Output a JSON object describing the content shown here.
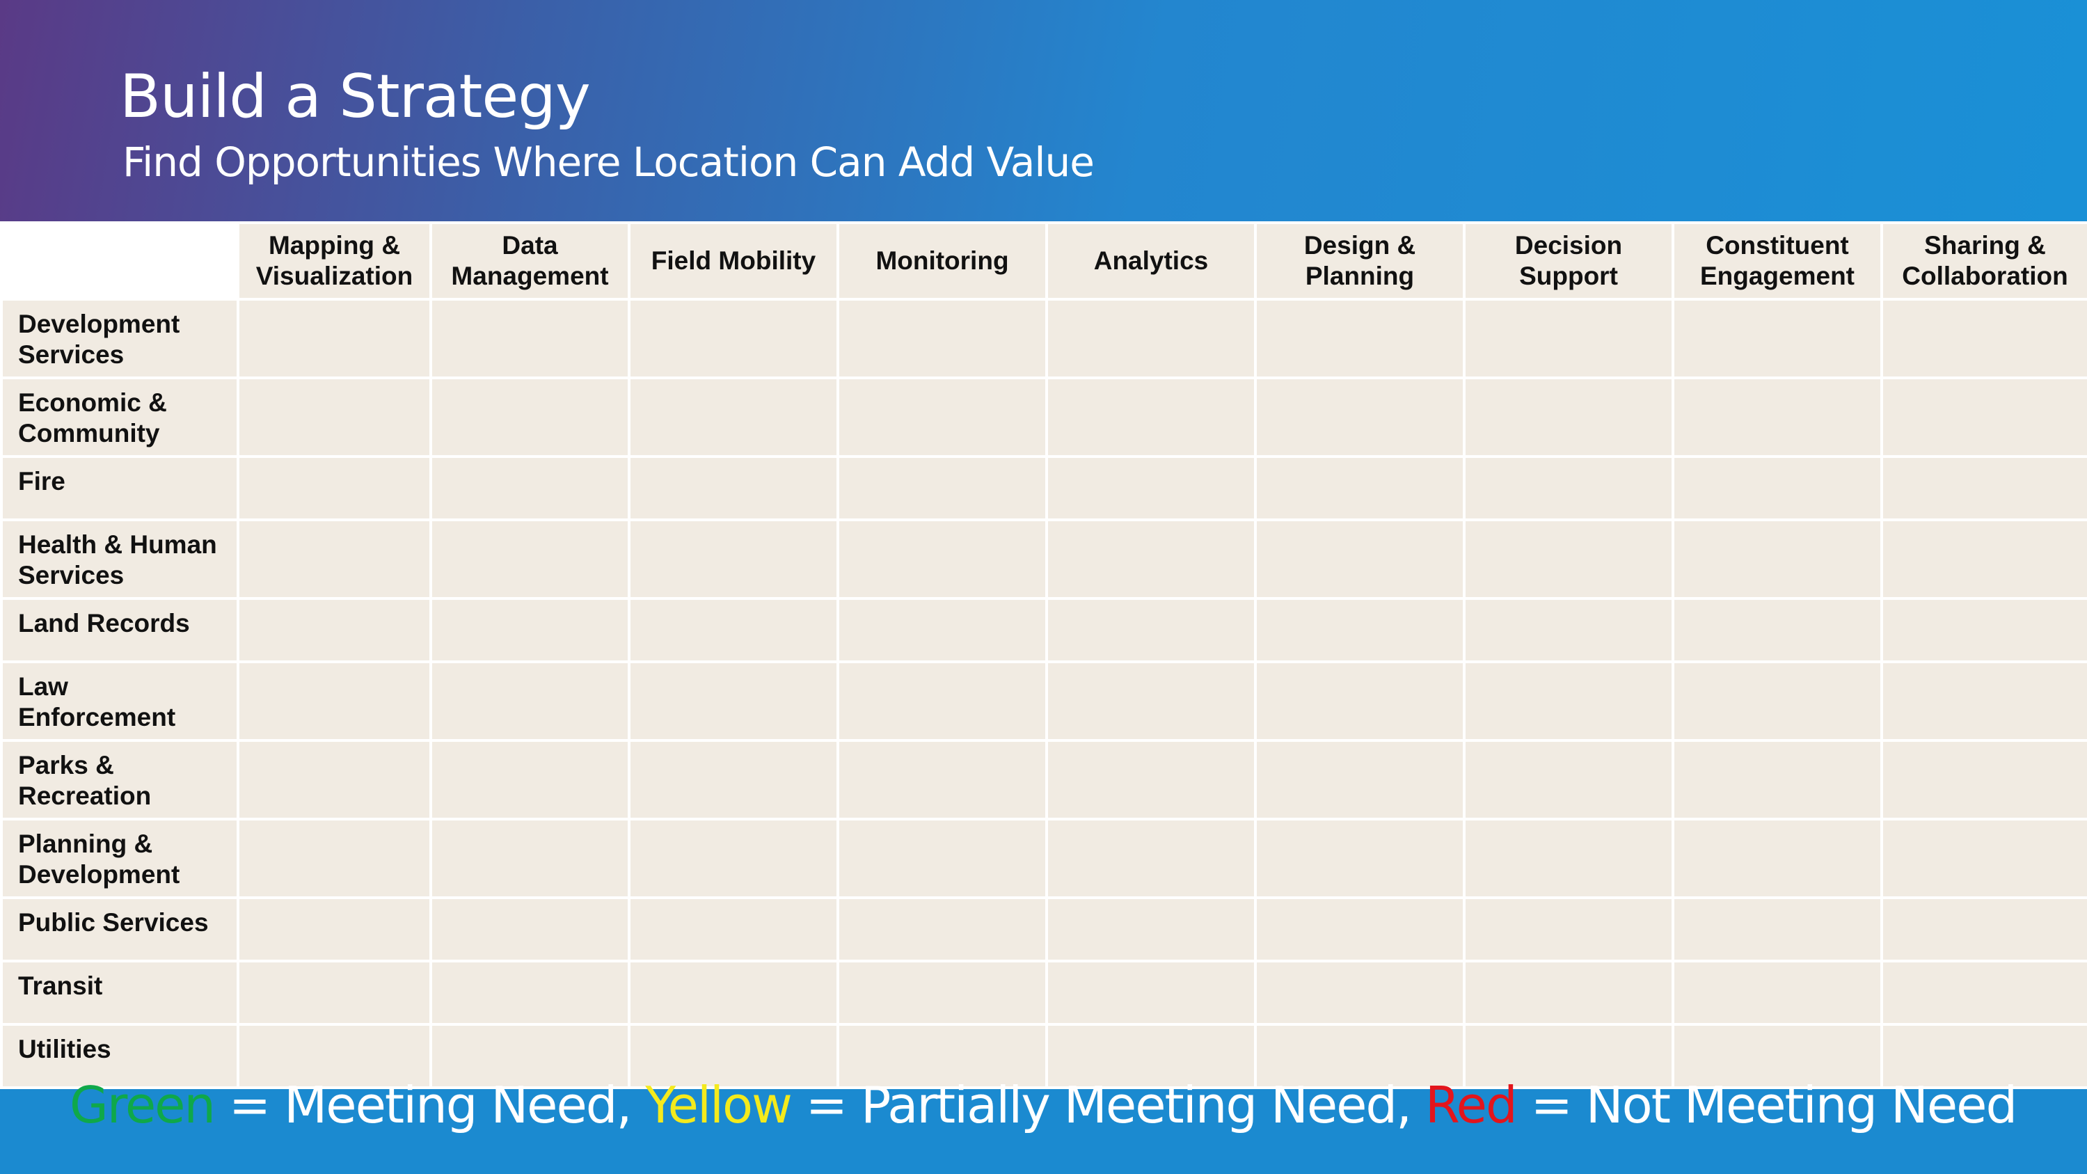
{
  "header": {
    "title": "Build a Strategy",
    "subtitle": "Find Opportunities Where Location Can Add Value",
    "gradient_colors": [
      "#5a3a86",
      "#2386cf",
      "#1a90d6"
    ]
  },
  "grid": {
    "columns": [
      "Mapping & Visualization",
      "Data Management",
      "Field Mobility",
      "Monitoring",
      "Analytics",
      "Design & Planning",
      "Decision Support",
      "Constituent Engagement",
      "Sharing & Collaboration"
    ],
    "rows": [
      "Development Services",
      "Economic & Community",
      "Fire",
      "Health & Human Services",
      "Land Records",
      "Law Enforcement",
      "Parks & Recreation",
      "Planning & Development",
      "Public Services",
      "Transit",
      "Utilities"
    ],
    "cell_color": "#f1ebe2"
  },
  "legend": {
    "green_label": "Green",
    "green_text": " = Meeting Need, ",
    "yellow_label": "Yellow",
    "yellow_text": " = Partially Meeting Need, ",
    "red_label": "Red",
    "red_text": " = Not Meeting Need",
    "colors": {
      "green": "#0fa84a",
      "yellow": "#f4ea1c",
      "red": "#e3151c",
      "text": "#ffffff"
    }
  }
}
